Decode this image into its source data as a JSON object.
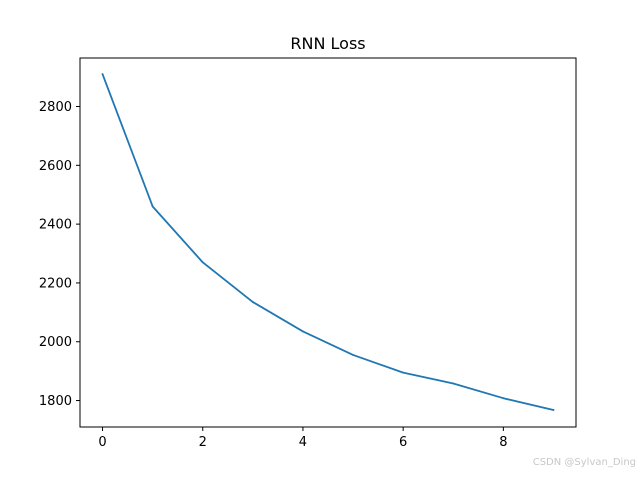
{
  "chart_data": {
    "type": "line",
    "title": "RNN Loss",
    "xlabel": "",
    "ylabel": "",
    "x": [
      0,
      1,
      2,
      3,
      4,
      5,
      6,
      7,
      8,
      9
    ],
    "series": [
      {
        "values": [
          2910,
          2460,
          2270,
          2135,
          2035,
          1955,
          1895,
          1858,
          1808,
          1768
        ],
        "color": "#1f77b4"
      }
    ],
    "xlim": [
      -0.45,
      9.45
    ],
    "ylim": [
      1710,
      2965
    ],
    "xticks": [
      0,
      2,
      4,
      6,
      8
    ],
    "yticks": [
      1800,
      2000,
      2200,
      2400,
      2600,
      2800
    ],
    "grid": false,
    "legend": "none"
  },
  "watermark": "CSDN @Sylvan_Ding"
}
